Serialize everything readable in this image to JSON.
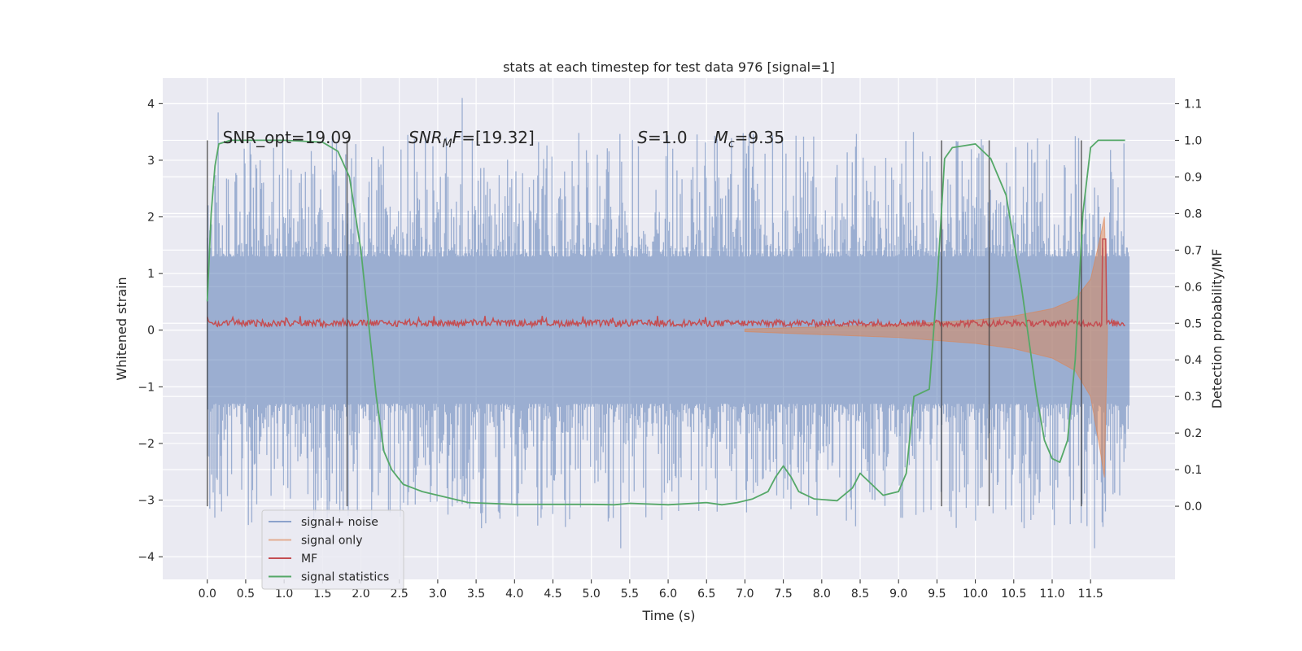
{
  "chart_data": {
    "type": "line",
    "title": "stats at each timestep for test data 976 [signal=1]",
    "xlabel": "Time (s)",
    "ylabel": "Whitened strain",
    "y2label": "Detection probability/MF",
    "xlim": [
      -0.58,
      12.6
    ],
    "ylim": [
      -4.4,
      4.45
    ],
    "y2lim": [
      -0.2,
      1.17
    ],
    "x_ticks": [
      0.0,
      0.5,
      1.0,
      1.5,
      2.0,
      2.5,
      3.0,
      3.5,
      4.0,
      4.5,
      5.0,
      5.5,
      6.0,
      6.5,
      7.0,
      7.5,
      8.0,
      8.5,
      9.0,
      9.5,
      10.0,
      10.5,
      11.0,
      11.5
    ],
    "x_tick_labels": [
      "0.0",
      "0.5",
      "1.0",
      "1.5",
      "2.0",
      "2.5",
      "3.0",
      "3.5",
      "4.0",
      "4.5",
      "5.0",
      "5.5",
      "6.0",
      "6.5",
      "7.0",
      "7.5",
      "8.0",
      "8.5",
      "9.0",
      "9.5",
      "10.0",
      "10.5",
      "11.0",
      "11.5"
    ],
    "y_ticks": [
      -4,
      -3,
      -2,
      -1,
      0,
      1,
      2,
      3,
      4
    ],
    "y_tick_labels": [
      "−4",
      "−3",
      "−2",
      "−1",
      "0",
      "1",
      "2",
      "3",
      "4"
    ],
    "y2_ticks": [
      0.0,
      0.1,
      0.2,
      0.3,
      0.4,
      0.5,
      0.6,
      0.7,
      0.8,
      0.9,
      1.0,
      1.1
    ],
    "y2_tick_labels": [
      "0.0",
      "0.1",
      "0.2",
      "0.3",
      "0.4",
      "0.5",
      "0.6",
      "0.7",
      "0.8",
      "0.9",
      "1.0",
      "1.1"
    ],
    "grid": true,
    "legend_position": "bottom-left",
    "duration_s": 12.0,
    "series": [
      {
        "name": "signal+ noise",
        "color": "#4c72b0",
        "axis": "left",
        "description_values": {
          "typical_range": [
            -1.6,
            1.6
          ],
          "peak_max": 4.1,
          "peak_min": -3.85
        }
      },
      {
        "name": "signal only",
        "color": "#dd8452",
        "axis": "left",
        "envelope": [
          {
            "x": 7.0,
            "y": 0.02
          },
          {
            "x": 8.0,
            "y": 0.06
          },
          {
            "x": 9.0,
            "y": 0.1
          },
          {
            "x": 10.0,
            "y": 0.18
          },
          {
            "x": 10.5,
            "y": 0.25
          },
          {
            "x": 11.0,
            "y": 0.38
          },
          {
            "x": 11.3,
            "y": 0.55
          },
          {
            "x": 11.5,
            "y": 0.9
          },
          {
            "x": 11.62,
            "y": 1.6
          },
          {
            "x": 11.68,
            "y": 2.0
          },
          {
            "x": 11.72,
            "y": 0.0
          }
        ]
      },
      {
        "name": "MF",
        "color": "#c44e52",
        "axis": "right",
        "baseline": 0.5,
        "peak": {
          "x": 11.68,
          "y": 0.73
        }
      },
      {
        "name": "signal statistics",
        "color": "#55a868",
        "axis": "right",
        "points": [
          [
            0.0,
            0.56
          ],
          [
            0.05,
            0.8
          ],
          [
            0.1,
            0.93
          ],
          [
            0.15,
            0.99
          ],
          [
            0.3,
            1.0
          ],
          [
            1.0,
            1.0
          ],
          [
            1.5,
            0.995
          ],
          [
            1.7,
            0.97
          ],
          [
            1.85,
            0.9
          ],
          [
            2.0,
            0.7
          ],
          [
            2.1,
            0.5
          ],
          [
            2.2,
            0.3
          ],
          [
            2.3,
            0.15
          ],
          [
            2.4,
            0.1
          ],
          [
            2.55,
            0.06
          ],
          [
            2.8,
            0.04
          ],
          [
            3.0,
            0.03
          ],
          [
            3.4,
            0.01
          ],
          [
            4.0,
            0.005
          ],
          [
            5.0,
            0.005
          ],
          [
            5.3,
            0.004
          ],
          [
            5.5,
            0.008
          ],
          [
            6.0,
            0.004
          ],
          [
            6.5,
            0.01
          ],
          [
            6.7,
            0.004
          ],
          [
            6.9,
            0.01
          ],
          [
            7.1,
            0.02
          ],
          [
            7.3,
            0.04
          ],
          [
            7.4,
            0.08
          ],
          [
            7.5,
            0.11
          ],
          [
            7.6,
            0.08
          ],
          [
            7.7,
            0.04
          ],
          [
            7.9,
            0.02
          ],
          [
            8.2,
            0.015
          ],
          [
            8.4,
            0.05
          ],
          [
            8.5,
            0.09
          ],
          [
            8.6,
            0.07
          ],
          [
            8.8,
            0.03
          ],
          [
            9.0,
            0.04
          ],
          [
            9.1,
            0.09
          ],
          [
            9.2,
            0.3
          ],
          [
            9.4,
            0.32
          ],
          [
            9.5,
            0.6
          ],
          [
            9.6,
            0.95
          ],
          [
            9.7,
            0.98
          ],
          [
            10.0,
            0.99
          ],
          [
            10.2,
            0.95
          ],
          [
            10.4,
            0.85
          ],
          [
            10.6,
            0.6
          ],
          [
            10.8,
            0.3
          ],
          [
            10.9,
            0.18
          ],
          [
            11.0,
            0.13
          ],
          [
            11.1,
            0.12
          ],
          [
            11.2,
            0.18
          ],
          [
            11.3,
            0.4
          ],
          [
            11.4,
            0.8
          ],
          [
            11.5,
            0.98
          ],
          [
            11.6,
            1.0
          ],
          [
            11.95,
            1.0
          ]
        ]
      }
    ],
    "vertical_lines_x": [
      0.0,
      1.82,
      9.56,
      10.18,
      11.38
    ],
    "vertical_lines_y2range": [
      0.0,
      1.0
    ],
    "annotations": [
      {
        "text": "SNR_opt=19.09",
        "x": 0.2,
        "y": 3.3
      },
      {
        "text": "SNR_MF=[19.32]",
        "x": 2.62,
        "y": 3.3
      },
      {
        "text": "S=1.0",
        "x": 5.6,
        "y": 3.3
      },
      {
        "text": "M_c=9.35",
        "x": 6.6,
        "y": 3.3
      }
    ]
  },
  "colors": {
    "plot_background": "#eaeaf2",
    "grid": "#ffffff",
    "vertical_line": "#404040",
    "text": "#262626"
  }
}
